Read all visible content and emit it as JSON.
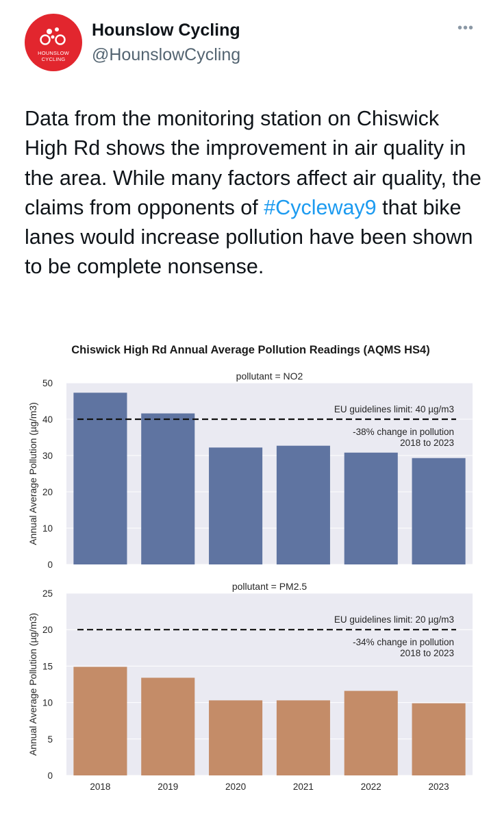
{
  "account": {
    "name": "Hounslow Cycling",
    "handle": "@HounslowCycling",
    "avatar_text_line1": "HOUNSLOW",
    "avatar_text_line2": "CYCLING",
    "avatar_color": "#e2262e",
    "more_label": "•••"
  },
  "tweet": {
    "text_before": "Data from the monitoring station on Chiswick High Rd shows the improvement in air quality in the area.  While many factors affect air quality, the claims from opponents of ",
    "hashtag": "#Cycleway9",
    "text_after": " that bike lanes would increase pollution have been shown to be complete nonsense."
  },
  "chart_data": {
    "type": "bar",
    "title": "Chiswick High Rd Annual Average Pollution Readings (AQMS HS4)",
    "categories": [
      "2018",
      "2019",
      "2020",
      "2021",
      "2022",
      "2023"
    ],
    "ylabel": "Annual Average Pollution (µg/m3)",
    "panels": [
      {
        "subtitle": "pollutant = NO2",
        "values": [
          47.3,
          41.6,
          32.2,
          32.7,
          30.8,
          29.3
        ],
        "ylim": [
          0,
          50
        ],
        "ticks": [
          0,
          10,
          20,
          30,
          40,
          50
        ],
        "limit": 40,
        "limit_label": "EU guidelines limit: 40 µg/m3",
        "change_line1": "-38% change in pollution",
        "change_line2": "2018 to 2023",
        "color": "#5f74a1"
      },
      {
        "subtitle": "pollutant = PM2.5",
        "values": [
          14.9,
          13.4,
          10.3,
          10.3,
          11.6,
          9.9
        ],
        "ylim": [
          0,
          25
        ],
        "ticks": [
          0,
          5,
          10,
          15,
          20,
          25
        ],
        "limit": 20,
        "limit_label": "EU guidelines limit: 20 µg/m3",
        "change_line1": "-34% change in pollution",
        "change_line2": "2018 to 2023",
        "color": "#c48c68"
      }
    ]
  }
}
